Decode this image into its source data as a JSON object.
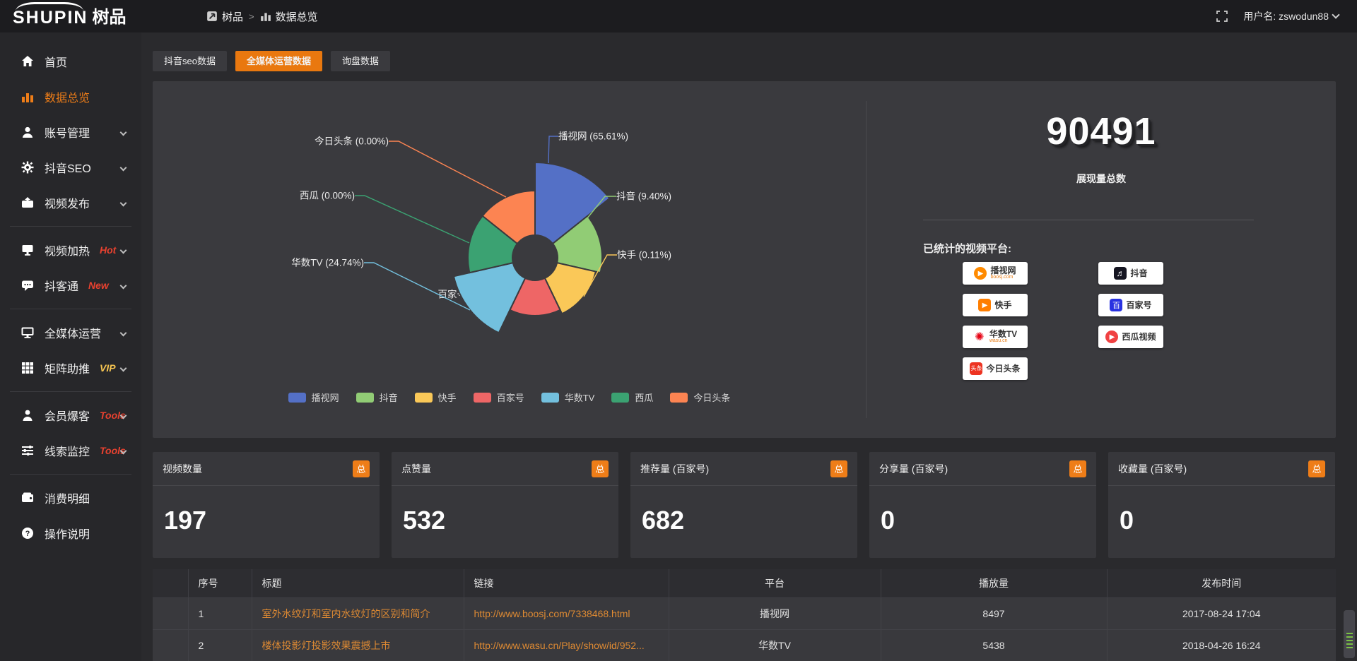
{
  "header": {
    "logo_en": "SHUPIN",
    "logo_cn": "树品",
    "breadcrumb": [
      {
        "label": "树品"
      },
      {
        "label": "数据总览"
      }
    ],
    "separator": ">",
    "user_label": "用户名: zswodun88"
  },
  "sidebar": {
    "groups": [
      {
        "items": [
          {
            "label": "首页",
            "icon": "home-icon"
          },
          {
            "label": "数据总览",
            "icon": "bar-chart-icon",
            "active": true
          },
          {
            "label": "账号管理",
            "icon": "user-icon",
            "chevron": true
          },
          {
            "label": "抖音SEO",
            "icon": "gear-icon",
            "chevron": true
          },
          {
            "label": "视频发布",
            "icon": "video-upload-icon",
            "chevron": true
          }
        ]
      },
      {
        "items": [
          {
            "label": "视频加热",
            "icon": "monitor-play-icon",
            "badge": "Hot",
            "badge_color": "#e8412f",
            "chevron": true
          },
          {
            "label": "抖客通",
            "icon": "chat-icon",
            "badge": "New",
            "badge_color": "#e8412f",
            "chevron": true
          }
        ]
      },
      {
        "items": [
          {
            "label": "全媒体运营",
            "icon": "screen-icon",
            "chevron": true
          },
          {
            "label": "矩阵助推",
            "icon": "grid-icon",
            "badge": "VIP",
            "badge_color": "#f5c451",
            "chevron": true
          }
        ]
      },
      {
        "items": [
          {
            "label": "会员爆客",
            "icon": "person-icon",
            "badge": "Tools",
            "badge_color": "#e8412f",
            "chevron": true
          },
          {
            "label": "线索监控",
            "icon": "sliders-icon",
            "badge": "Tools",
            "badge_color": "#e8412f",
            "chevron": true
          }
        ]
      },
      {
        "items": [
          {
            "label": "消费明细",
            "icon": "wallet-icon"
          },
          {
            "label": "操作说明",
            "icon": "question-icon"
          }
        ]
      }
    ]
  },
  "tabs": [
    {
      "label": "抖音seo数据",
      "active": false
    },
    {
      "label": "全媒体运营数据",
      "active": true
    },
    {
      "label": "询盘数据",
      "active": false
    }
  ],
  "chart_data": {
    "type": "pie",
    "variant": "nightingale-rose-donut",
    "title": "",
    "label_format": "{name} ({percent}%)",
    "legend_position": "bottom",
    "items": [
      {
        "name": "播视网",
        "percent": 65.61,
        "color": "#5470c6"
      },
      {
        "name": "抖音",
        "percent": 9.4,
        "color": "#91cc75"
      },
      {
        "name": "快手",
        "percent": 0.11,
        "color": "#fac858"
      },
      {
        "name": "百家号",
        "percent": 0.15,
        "color": "#ee6666"
      },
      {
        "name": "华数TV",
        "percent": 24.74,
        "color": "#73c0de"
      },
      {
        "name": "西瓜",
        "percent": 0.0,
        "color": "#3ba272"
      },
      {
        "name": "今日头条",
        "percent": 0.0,
        "color": "#fc8452"
      }
    ]
  },
  "summary": {
    "total_value": "90491",
    "total_label": "展现量总数",
    "platforms_title": "已统计的视频平台:",
    "platform_columns": [
      [
        {
          "name": "播视网",
          "sub": "boosj.com",
          "icon": "boosj-icon"
        },
        {
          "name": "快手",
          "icon": "kuaishou-icon"
        },
        {
          "name": "华数TV",
          "sub": "wasu.cn",
          "icon": "wasu-icon"
        },
        {
          "name": "今日头条",
          "icon": "toutiao-icon"
        }
      ],
      [
        {
          "name": "抖音",
          "icon": "douyin-icon"
        },
        {
          "name": "百家号",
          "icon": "baijiahao-icon"
        },
        {
          "name": "西瓜视频",
          "icon": "xigua-icon"
        }
      ]
    ]
  },
  "stat_cards": [
    {
      "title": "视频数量",
      "badge": "总",
      "value": "197"
    },
    {
      "title": "点赞量",
      "badge": "总",
      "value": "532"
    },
    {
      "title": "推荐量 (百家号)",
      "badge": "总",
      "value": "682"
    },
    {
      "title": "分享量 (百家号)",
      "badge": "总",
      "value": "0"
    },
    {
      "title": "收藏量 (百家号)",
      "badge": "总",
      "value": "0"
    }
  ],
  "table": {
    "columns": [
      "",
      "序号",
      "标题",
      "链接",
      "平台",
      "播放量",
      "发布时间"
    ],
    "rows": [
      {
        "no": "1",
        "title": "室外水纹灯和室内水纹灯的区别和简介",
        "link": "http://www.boosj.com/7338468.html",
        "platform": "播视网",
        "plays": "8497",
        "time": "2017-08-24 17:04"
      },
      {
        "no": "2",
        "title": "楼体投影灯投影效果震撼上市",
        "link": "http://www.wasu.cn/Play/show/id/952...",
        "platform": "华数TV",
        "plays": "5438",
        "time": "2018-04-26 16:24"
      }
    ]
  },
  "colors": {
    "accent": "#ee7d18",
    "panel": "#3a3a3e",
    "topbar": "#1c1c1f",
    "sidebar": "#27272a"
  }
}
